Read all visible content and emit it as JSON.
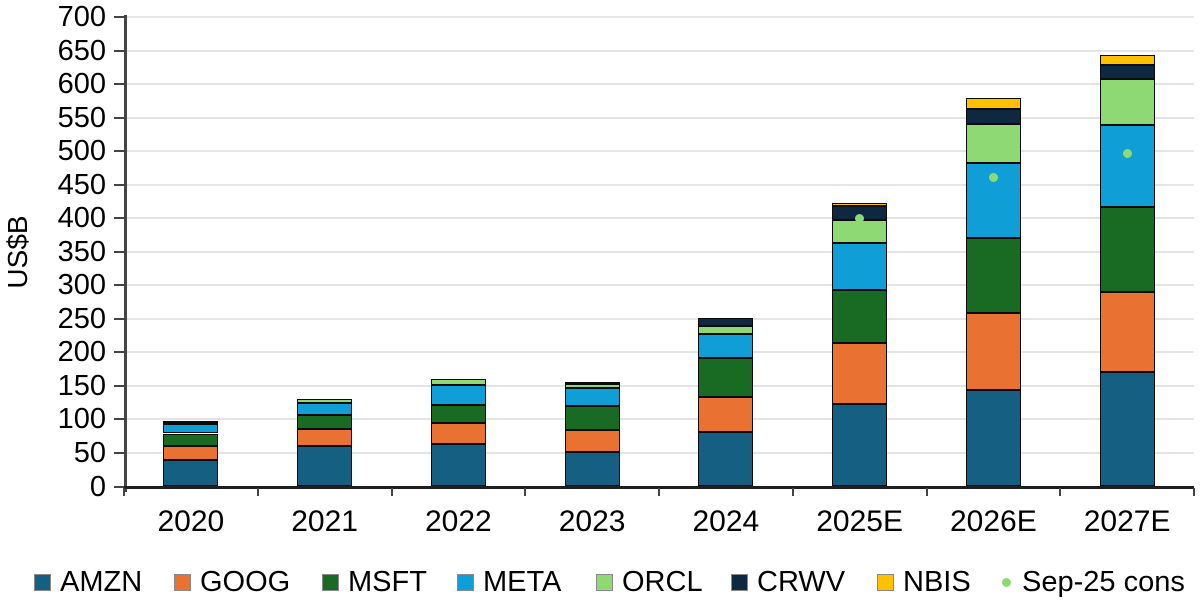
{
  "chart_data": {
    "type": "bar",
    "stacked": true,
    "title": "",
    "xlabel": "",
    "ylabel": "US$B",
    "ylim": [
      0,
      700
    ],
    "ytick_step": 50,
    "yticks": [
      0,
      50,
      100,
      150,
      200,
      250,
      300,
      350,
      400,
      450,
      500,
      550,
      600,
      650,
      700
    ],
    "grid": "horizontal",
    "legend_position": "bottom",
    "categories": [
      "2020",
      "2021",
      "2022",
      "2023",
      "2024",
      "2025E",
      "2026E",
      "2027E"
    ],
    "series": [
      {
        "name": "AMZN",
        "color": "#156082",
        "values": [
          40,
          60,
          63,
          52,
          81,
          123,
          144,
          170
        ]
      },
      {
        "name": "GOOG",
        "color": "#E97132",
        "values": [
          21,
          25,
          32,
          32,
          53,
          91,
          115,
          120
        ]
      },
      {
        "name": "MSFT",
        "color": "#196B24",
        "values": [
          18,
          21,
          26,
          36,
          57,
          79,
          112,
          127
        ]
      },
      {
        "name": "META",
        "color": "#0F9ED5",
        "values": [
          15,
          19,
          31,
          27,
          37,
          70,
          111,
          122
        ]
      },
      {
        "name": "ORCL",
        "color": "#8ED973",
        "values": [
          1,
          6,
          8,
          6,
          12,
          35,
          59,
          69
        ]
      },
      {
        "name": "CRWV",
        "color": "#0E2841",
        "values": [
          2,
          0,
          0,
          3,
          11,
          20,
          22,
          20
        ]
      },
      {
        "name": "NBIS",
        "color": "#FFC000",
        "values": [
          0,
          0,
          0,
          0,
          0,
          4,
          16,
          16
        ]
      }
    ],
    "markers": {
      "name": "Sep-25 cons",
      "color": "#8ED973",
      "values": [
        null,
        null,
        null,
        null,
        null,
        400,
        460,
        497
      ]
    }
  },
  "legend": {
    "cons_label": "Sep-25 cons"
  }
}
